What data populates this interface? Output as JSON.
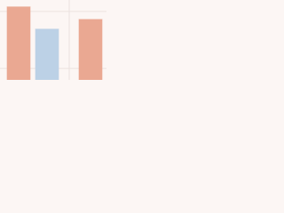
{
  "chart_data": {
    "type": "bar",
    "categories": [
      null,
      null,
      null
    ],
    "values": [
      1.28,
      0.89,
      1.06
    ],
    "colors": [
      "#eaa892",
      "#bcd1e6",
      "#eaa892"
    ],
    "ylim": [
      0,
      1.4
    ],
    "yticks": [
      0.2,
      1.2
    ],
    "grid": true
  }
}
